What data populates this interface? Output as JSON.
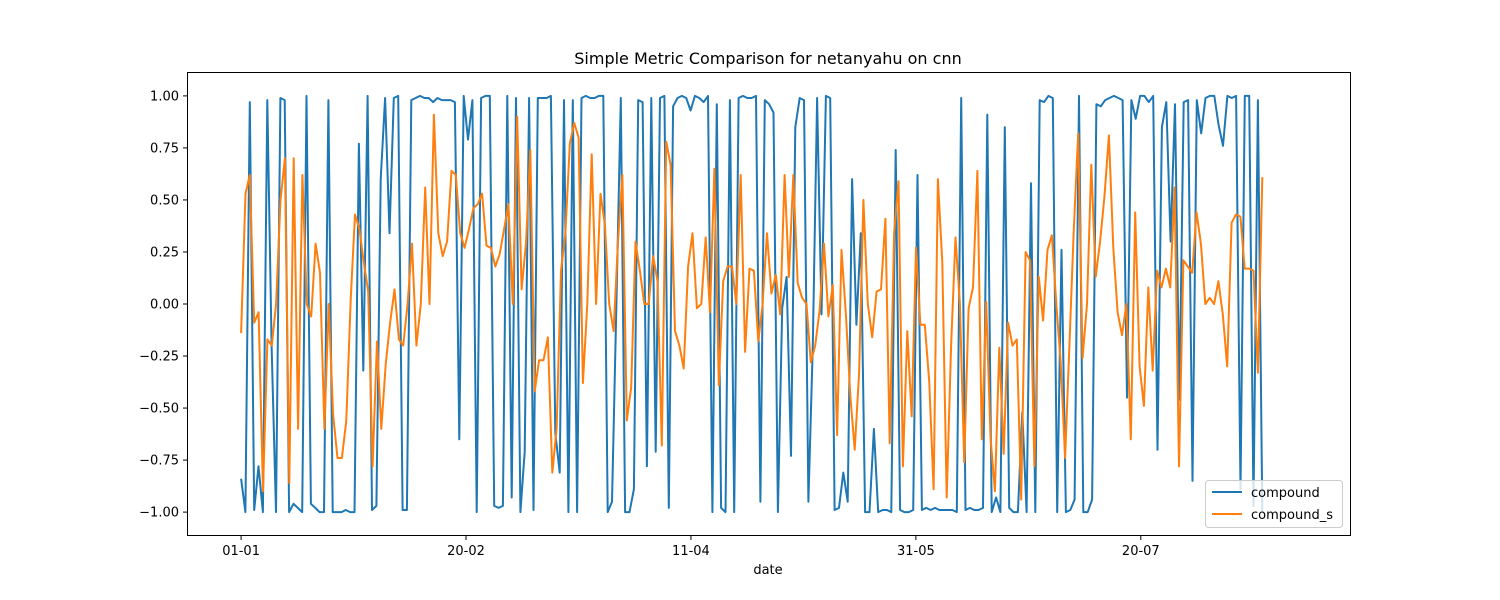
{
  "chart_data": {
    "type": "line",
    "title": "Simple Metric Comparison for netanyahu on cnn",
    "xlabel": "date",
    "ylabel": "",
    "x_ticks": [
      {
        "label": "01-01",
        "day": 0
      },
      {
        "label": "20-02",
        "day": 50
      },
      {
        "label": "11-04",
        "day": 100
      },
      {
        "label": "31-05",
        "day": 150
      },
      {
        "label": "20-07",
        "day": 200
      }
    ],
    "y_ticks": [
      -1.0,
      -0.75,
      -0.5,
      -0.25,
      0.0,
      0.25,
      0.5,
      0.75,
      1.0
    ],
    "y_tick_labels": [
      "−1.00",
      "−0.75",
      "−0.50",
      "−0.25",
      "0.00",
      "0.25",
      "0.50",
      "0.75",
      "1.00"
    ],
    "xlim_days": [
      -11.8,
      246.5
    ],
    "ylim": [
      -1.11,
      1.11
    ],
    "grid": false,
    "legend_position": "lower right",
    "series": [
      {
        "name": "compound",
        "color": "#1f77b4",
        "values": [
          -0.84,
          -1.0,
          0.97,
          -0.99,
          -0.78,
          -1.0,
          0.98,
          -0.2,
          -1.0,
          0.99,
          0.98,
          -1.0,
          -0.96,
          -0.98,
          -1.0,
          1.0,
          -0.96,
          -0.98,
          -1.0,
          -1.0,
          0.98,
          -1.0,
          -1.0,
          -1.0,
          -0.99,
          -1.0,
          -1.0,
          0.77,
          -0.32,
          1.0,
          -0.99,
          -0.97,
          0.6,
          0.99,
          0.34,
          0.99,
          1.0,
          -0.99,
          -0.99,
          0.98,
          0.99,
          1.0,
          0.99,
          0.99,
          0.97,
          0.99,
          0.98,
          0.98,
          0.98,
          0.97,
          -0.65,
          1.0,
          0.79,
          0.98,
          -1.0,
          0.99,
          1.0,
          1.0,
          -0.97,
          -0.98,
          -0.97,
          1.0,
          -0.93,
          0.99,
          -1.0,
          -0.71,
          0.99,
          -0.99,
          0.99,
          0.99,
          0.99,
          1.0,
          -0.62,
          -0.81,
          0.98,
          -1.0,
          0.98,
          -1.0,
          0.99,
          1.0,
          0.99,
          0.99,
          1.0,
          1.0,
          -1.0,
          -0.95,
          0.0,
          0.99,
          -1.0,
          -1.0,
          -0.89,
          0.98,
          0.97,
          -0.78,
          0.99,
          -0.71,
          0.99,
          1.0,
          -0.98,
          0.95,
          0.99,
          1.0,
          0.99,
          0.93,
          1.0,
          0.99,
          0.97,
          1.0,
          -1.0,
          0.96,
          -0.98,
          -1.0,
          0.98,
          -1.0,
          0.99,
          1.0,
          0.99,
          0.99,
          1.0,
          -0.95,
          0.98,
          0.96,
          0.92,
          -1.0,
          -0.02,
          0.13,
          -0.73,
          0.85,
          0.99,
          0.98,
          -0.95,
          -0.2,
          0.99,
          -0.05,
          1.0,
          0.99,
          -0.99,
          -0.98,
          -0.81,
          -0.95,
          0.6,
          -0.1,
          0.34,
          -1.0,
          -1.0,
          -0.6,
          -1.0,
          -0.99,
          -0.99,
          -1.0,
          0.74,
          -0.99,
          -1.0,
          -1.0,
          -0.99,
          0.62,
          -0.99,
          -0.98,
          -0.99,
          -0.98,
          -0.99,
          -0.99,
          -0.99,
          -0.99,
          -1.0,
          0.99,
          -0.99,
          -0.98,
          -0.99,
          -0.99,
          -0.98,
          0.91,
          -1.0,
          -0.93,
          -1.0,
          0.85,
          -0.98,
          -1.0,
          -1.0,
          -0.52,
          -1.0,
          0.58,
          -1.0,
          0.98,
          0.97,
          1.0,
          0.99,
          -1.0,
          0.26,
          -1.0,
          -0.99,
          -0.94,
          1.0,
          -1.0,
          -1.0,
          -0.94,
          0.96,
          0.95,
          0.98,
          0.99,
          1.0,
          0.99,
          0.98,
          -0.45,
          0.98,
          0.89,
          1.0,
          1.0,
          0.97,
          1.0,
          -0.7,
          0.85,
          0.97,
          0.3,
          0.96,
          -0.46,
          0.97,
          0.98,
          -0.85,
          0.98,
          0.82,
          0.99,
          1.0,
          1.0,
          0.86,
          0.76,
          1.0,
          0.99,
          1.0,
          -0.89,
          1.0,
          1.0,
          -0.97,
          0.98,
          -1.0
        ]
      },
      {
        "name": "compound_s",
        "color": "#ff7f0e",
        "values": [
          -0.14,
          0.53,
          0.62,
          -0.09,
          -0.04,
          -0.9,
          -0.17,
          -0.2,
          0.0,
          0.5,
          0.7,
          -0.86,
          0.7,
          -0.6,
          0.62,
          0.0,
          -0.06,
          0.29,
          0.15,
          -0.6,
          0.0,
          -0.53,
          -0.74,
          -0.74,
          -0.56,
          0.02,
          0.43,
          0.36,
          0.2,
          0.06,
          -0.78,
          -0.18,
          -0.6,
          -0.29,
          -0.09,
          0.07,
          -0.17,
          -0.2,
          0.0,
          0.29,
          -0.2,
          0.0,
          0.56,
          0.0,
          0.91,
          0.34,
          0.23,
          0.3,
          0.64,
          0.62,
          0.34,
          0.27,
          0.36,
          0.46,
          0.48,
          0.53,
          0.28,
          0.27,
          0.18,
          0.24,
          0.36,
          0.48,
          0.0,
          0.9,
          0.07,
          0.29,
          0.74,
          -0.42,
          -0.27,
          -0.27,
          -0.16,
          -0.81,
          -0.6,
          0.16,
          0.34,
          0.77,
          0.87,
          0.8,
          -0.38,
          0.0,
          0.72,
          0.0,
          0.53,
          0.38,
          0.0,
          -0.13,
          0.3,
          0.62,
          -0.56,
          -0.4,
          0.3,
          0.16,
          0.0,
          0.0,
          0.23,
          0.11,
          -0.68,
          0.78,
          0.67,
          -0.13,
          -0.2,
          -0.31,
          0.18,
          0.34,
          -0.02,
          0.0,
          0.32,
          -0.04,
          0.65,
          -0.39,
          0.11,
          0.18,
          0.18,
          0.0,
          0.62,
          -0.23,
          0.17,
          0.16,
          -0.18,
          0.0,
          0.34,
          0.05,
          0.14,
          -0.05,
          0.62,
          0.13,
          0.62,
          0.1,
          0.03,
          0.0,
          -0.28,
          -0.2,
          -0.03,
          0.29,
          -0.06,
          0.09,
          -0.63,
          0.26,
          -0.05,
          -0.44,
          -0.7,
          -0.33,
          0.5,
          0.0,
          -0.16,
          0.06,
          0.07,
          0.41,
          -0.67,
          0.34,
          0.59,
          -0.78,
          -0.13,
          -0.54,
          0.27,
          -0.1,
          -0.1,
          -0.37,
          -0.89,
          0.6,
          0.2,
          -0.93,
          -0.2,
          0.32,
          0.0,
          -0.76,
          -0.02,
          0.08,
          0.64,
          -0.65,
          0.01,
          -0.64,
          -0.9,
          -0.21,
          -0.72,
          -0.09,
          -0.2,
          -0.17,
          -0.94,
          0.25,
          0.21,
          -0.78,
          0.13,
          -0.08,
          0.26,
          0.33,
          0.0,
          -0.28,
          -0.74,
          -0.2,
          0.36,
          0.82,
          -0.26,
          0.0,
          0.67,
          0.13,
          0.3,
          0.52,
          0.81,
          0.27,
          -0.04,
          -0.15,
          0.0,
          -0.65,
          0.44,
          -0.3,
          -0.49,
          0.08,
          -0.32,
          0.16,
          0.08,
          0.17,
          0.08,
          0.56,
          -0.78,
          0.21,
          0.18,
          0.15,
          0.44,
          0.29,
          0.0,
          0.03,
          0.0,
          0.11,
          -0.05,
          -0.3,
          0.39,
          0.43,
          0.42,
          0.17,
          0.17,
          0.16,
          -0.33,
          0.61
        ]
      }
    ]
  }
}
